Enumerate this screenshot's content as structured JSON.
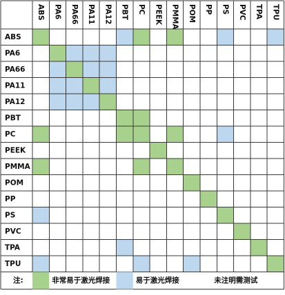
{
  "columns": [
    "ABS",
    "PA6",
    "PA66",
    "PA11",
    "PA12",
    "PBT",
    "PC",
    "PEEK",
    "PMMA",
    "POM",
    "PP",
    "PS",
    "PVC",
    "TPA",
    "TPU"
  ],
  "rows": [
    "ABS",
    "PA6",
    "PA66",
    "PA11",
    "PA12",
    "PBT",
    "PC",
    "PEEK",
    "PMMA",
    "POM",
    "PP",
    "PS",
    "PVC",
    "TPA",
    "TPU"
  ],
  "colors": {
    "very_easy": "#a9d18e",
    "easy": "#bdd7ee",
    "none": "#ffffff",
    "grid": "#3a3a3a"
  },
  "cells": [
    [
      "G",
      "",
      "",
      "",
      "",
      "B",
      "G",
      "",
      "G",
      "",
      "",
      "B",
      "",
      "",
      "B"
    ],
    [
      "",
      "G",
      "B",
      "B",
      "B",
      "",
      "",
      "",
      "",
      "",
      "",
      "",
      "",
      "",
      ""
    ],
    [
      "",
      "B",
      "G",
      "B",
      "B",
      "",
      "",
      "",
      "",
      "",
      "",
      "",
      "",
      "",
      ""
    ],
    [
      "",
      "B",
      "B",
      "G",
      "B",
      "",
      "",
      "",
      "",
      "",
      "",
      "",
      "",
      "",
      ""
    ],
    [
      "",
      "B",
      "B",
      "B",
      "G",
      "",
      "",
      "",
      "",
      "",
      "",
      "",
      "",
      "",
      ""
    ],
    [
      "",
      "",
      "",
      "",
      "",
      "G",
      "G",
      "",
      "",
      "",
      "",
      "",
      "",
      "",
      ""
    ],
    [
      "G",
      "",
      "",
      "",
      "",
      "G",
      "G",
      "",
      "G",
      "",
      "",
      "B",
      "",
      "",
      ""
    ],
    [
      "",
      "",
      "",
      "",
      "",
      "",
      "",
      "G",
      "",
      "",
      "",
      "",
      "",
      "",
      ""
    ],
    [
      "G",
      "",
      "",
      "",
      "",
      "",
      "G",
      "",
      "G",
      "",
      "",
      "",
      "",
      "",
      ""
    ],
    [
      "",
      "",
      "",
      "",
      "",
      "",
      "",
      "",
      "",
      "G",
      "",
      "",
      "",
      "",
      ""
    ],
    [
      "",
      "",
      "",
      "",
      "",
      "",
      "",
      "",
      "",
      "",
      "G",
      "",
      "",
      "",
      ""
    ],
    [
      "B",
      "",
      "",
      "",
      "",
      "",
      "",
      "",
      "",
      "",
      "",
      "G",
      "",
      "",
      ""
    ],
    [
      "",
      "",
      "",
      "",
      "",
      "",
      "",
      "",
      "",
      "",
      "",
      "",
      "G",
      "",
      ""
    ],
    [
      "",
      "",
      "",
      "",
      "",
      "B",
      "",
      "",
      "",
      "",
      "",
      "",
      "",
      "G",
      ""
    ],
    [
      "B",
      "",
      "",
      "",
      "",
      "",
      "B",
      "",
      "",
      "B",
      "",
      "",
      "",
      "",
      "G"
    ]
  ],
  "legend": {
    "note_label": "注:",
    "very_easy_label": "非常易于激光焊接",
    "easy_label": "易于激光焊接",
    "untested_label": "未注明需测试"
  }
}
